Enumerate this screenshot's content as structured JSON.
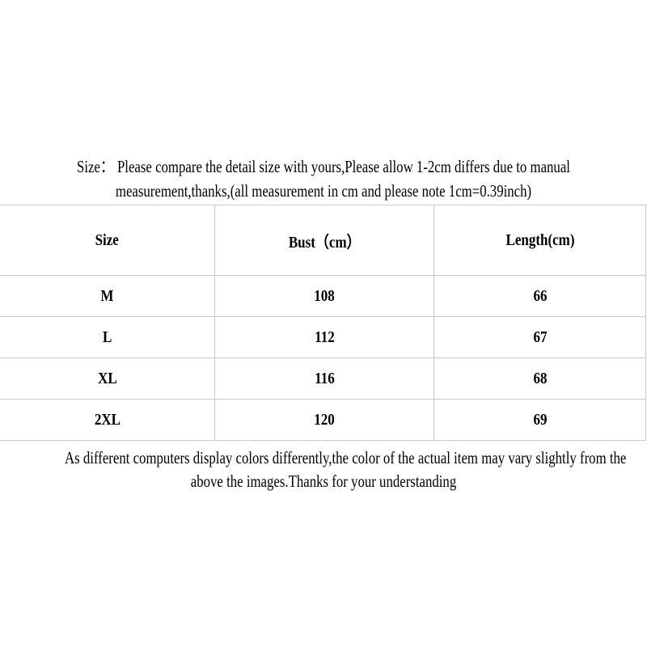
{
  "colors": {
    "background": "#ffffff",
    "text": "#000000",
    "table_border": "#c8c8c8"
  },
  "size_note": {
    "line1": "Size： Please compare the detail size with yours,Please allow 1-2cm differs due to manual",
    "line2": "measurement,thanks,(all measurement in cm and please note 1cm=0.39inch)"
  },
  "size_table": {
    "headers": [
      "Size",
      "Bust（cm）",
      "Length(cm)"
    ],
    "rows": [
      {
        "size": "M",
        "bust": "108",
        "length": "66"
      },
      {
        "size": "L",
        "bust": "112",
        "length": "67"
      },
      {
        "size": "XL",
        "bust": "116",
        "length": "68"
      },
      {
        "size": "2XL",
        "bust": "120",
        "length": "69"
      }
    ]
  },
  "color_note": {
    "line1": "As different computers display colors differently,the color of the actual item may vary slightly from the",
    "line2": "above the images.Thanks for your understanding"
  }
}
